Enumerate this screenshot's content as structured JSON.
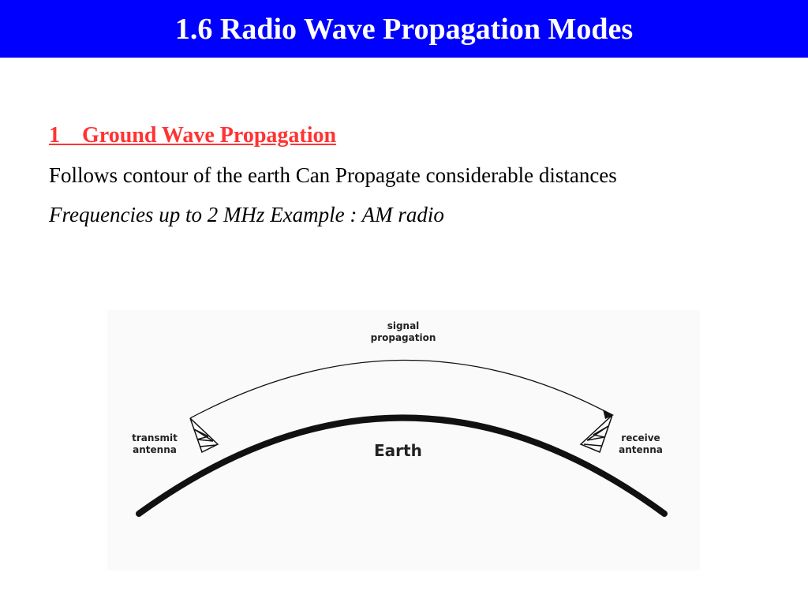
{
  "slide": {
    "title": "1.6 Radio Wave Propagation Modes",
    "heading": "1    Ground Wave Propagation",
    "line1": "Follows contour of the earth Can Propagate considerable distances",
    "line2": "Frequencies up to 2 MHz Example : AM radio"
  },
  "diagram": {
    "signal_label_1": "signal",
    "signal_label_2": "propagation",
    "transmit_label_1": "transmit",
    "transmit_label_2": "antenna",
    "receive_label_1": "receive",
    "receive_label_2": "antenna",
    "earth_label": "Earth"
  },
  "colors": {
    "title_bar": "#0000ff",
    "title_text": "#ffffff",
    "heading": "#ff3333",
    "figure_bg": "#fafafa"
  }
}
